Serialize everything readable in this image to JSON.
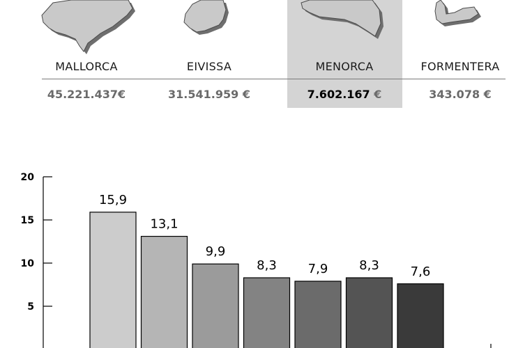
{
  "islands": [
    {
      "name": "MALLORCA",
      "value": "45.221.437€",
      "highlight": false
    },
    {
      "name": "EIVISSA",
      "value": "31.541.959 €",
      "highlight": false
    },
    {
      "name": "MENORCA",
      "value_number": "7.602.167",
      "value_unit": "€",
      "highlight": true
    },
    {
      "name": "FORMENTERA",
      "value": "343.078 €",
      "highlight": false
    }
  ],
  "chart_data": {
    "type": "bar",
    "title": "",
    "xlabel": "",
    "ylabel": "",
    "ylim": [
      0,
      20
    ],
    "yticks": [
      "20",
      "15",
      "10",
      "5"
    ],
    "values": [
      15.9,
      13.1,
      9.9,
      8.3,
      7.9,
      8.3,
      7.6
    ],
    "value_labels": [
      "15,9",
      "13,1",
      "9,9",
      "8,3",
      "7,9",
      "8,3",
      "7,6"
    ],
    "bar_colors": [
      "#cccccc",
      "#b5b5b5",
      "#9b9b9b",
      "#838383",
      "#6b6b6b",
      "#545454",
      "#3a3a3a"
    ],
    "grid": false,
    "legend": "none"
  }
}
